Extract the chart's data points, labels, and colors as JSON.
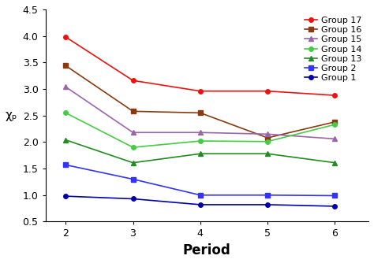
{
  "x": [
    2,
    3,
    4,
    5,
    6
  ],
  "series": [
    {
      "label": "Group 17",
      "color": "#ee1111",
      "marker": "o",
      "markersize": 4,
      "values": [
        3.98,
        3.16,
        2.96,
        2.96,
        2.88
      ]
    },
    {
      "label": "Group 16",
      "color": "#8B3A10",
      "marker": "s",
      "markersize": 4,
      "values": [
        3.44,
        2.58,
        2.55,
        2.08,
        2.38
      ]
    },
    {
      "label": "Group 15",
      "color": "#9966aa",
      "marker": "^",
      "markersize": 4,
      "values": [
        3.04,
        2.18,
        2.18,
        2.15,
        2.06
      ]
    },
    {
      "label": "Group 14",
      "color": "#44cc44",
      "marker": "o",
      "markersize": 4,
      "values": [
        2.55,
        1.9,
        2.02,
        2.01,
        2.33
      ]
    },
    {
      "label": "Group 13",
      "color": "#228B22",
      "marker": "^",
      "markersize": 4,
      "values": [
        2.04,
        1.61,
        1.78,
        1.78,
        1.61
      ]
    },
    {
      "label": "Group 2",
      "color": "#3333ff",
      "marker": "s",
      "markersize": 4,
      "values": [
        1.57,
        1.3,
        1.0,
        1.0,
        0.99
      ]
    },
    {
      "label": "Group 1",
      "color": "#0000aa",
      "marker": "o",
      "markersize": 4,
      "values": [
        0.98,
        0.93,
        0.82,
        0.82,
        0.79
      ]
    }
  ],
  "xlabel": "Period",
  "ylabel": "χₚ",
  "ylim": [
    0.5,
    4.5
  ],
  "yticks": [
    0.5,
    1.0,
    1.5,
    2.0,
    2.5,
    3.0,
    3.5,
    4.0,
    4.5
  ],
  "xlim": [
    1.7,
    6.5
  ],
  "xticks": [
    2,
    3,
    4,
    5,
    6
  ],
  "background_color": "#ffffff",
  "legend_fontsize": 8,
  "xlabel_fontsize": 12,
  "ylabel_fontsize": 11,
  "tick_fontsize": 9,
  "linewidth": 1.2
}
